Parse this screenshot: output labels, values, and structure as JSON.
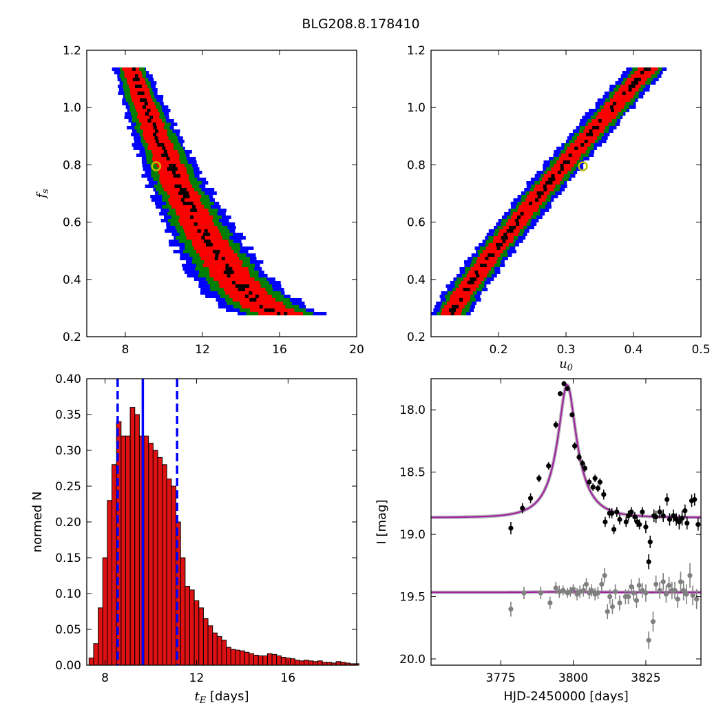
{
  "figure": {
    "title": "BLG208.8.178410"
  },
  "colors": {
    "sigma1": "#000000",
    "sigma2": "#ff0000",
    "sigma3": "#008000",
    "sigma4": "#0000ff",
    "best_fit_marker": "#bfbf00",
    "histogram_bar": "#dd1111",
    "best_line": "#0000ff",
    "model_curve": "#a020a0",
    "data_main": "#000000",
    "data_sub": "#808080"
  },
  "chart_data": [
    {
      "id": "fs-vs-tE",
      "type": "heatmap",
      "title": "",
      "xlabel": "",
      "ylabel": "f_s",
      "xlim": [
        6,
        20
      ],
      "ylim": [
        0.2,
        1.2
      ],
      "xticks": [
        8,
        12,
        16,
        20
      ],
      "xtick_labels": [
        "8",
        "12",
        "16",
        "20"
      ],
      "yticks": [
        0.2,
        0.4,
        0.6,
        0.8,
        1.0,
        1.2
      ],
      "ytick_labels": [
        "0.2",
        "0.4",
        "0.6",
        "0.8",
        "1.0",
        "1.2"
      ],
      "best_fit": {
        "x": 9.6,
        "y": 0.795
      },
      "ridge": {
        "f_min": 0.28,
        "f_max": 1.14,
        "x_at_fmax": 8.3,
        "x_at_fmin": 16.5,
        "curvature": 1.8
      },
      "band_widths": [
        0.2,
        0.8,
        1.2,
        1.6
      ],
      "grid": false
    },
    {
      "id": "fs-vs-u0",
      "type": "heatmap",
      "title": "",
      "xlabel": "u_0",
      "ylabel": "",
      "xlim": [
        0.1,
        0.5
      ],
      "ylim": [
        0.2,
        1.2
      ],
      "xticks": [
        0.2,
        0.3,
        0.4,
        0.5
      ],
      "xtick_labels": [
        "0.2",
        "0.3",
        "0.4",
        "0.5"
      ],
      "yticks": [
        0.2,
        0.4,
        0.6,
        0.8,
        1.0,
        1.2
      ],
      "ytick_labels": [
        "0.2",
        "0.4",
        "0.6",
        "0.8",
        "1.0",
        "1.2"
      ],
      "best_fit": {
        "x": 0.325,
        "y": 0.795
      },
      "ridge": {
        "f_min": 0.28,
        "f_max": 1.14,
        "x_at_fmin": 0.128,
        "x_at_fmax": 0.42,
        "curvature": 0.9
      },
      "band_widths": [
        0.005,
        0.015,
        0.022,
        0.03
      ],
      "grid": false
    },
    {
      "id": "tE-histogram",
      "type": "bar",
      "title": "",
      "xlabel": "t_E  [days]",
      "ylabel": "normed N",
      "xlim": [
        7.2,
        19.0
      ],
      "ylim": [
        0.0,
        0.4
      ],
      "xticks": [
        8,
        12,
        16
      ],
      "xtick_labels": [
        "8",
        "12",
        "16"
      ],
      "yticks": [
        0.0,
        0.05,
        0.1,
        0.15,
        0.2,
        0.25,
        0.3,
        0.35,
        0.4
      ],
      "ytick_labels": [
        "0.00",
        "0.05",
        "0.10",
        "0.15",
        "0.20",
        "0.25",
        "0.30",
        "0.35",
        "0.40"
      ],
      "bin_start": 7.3,
      "bin_width": 0.2,
      "values": [
        0.01,
        0.03,
        0.08,
        0.15,
        0.23,
        0.28,
        0.34,
        0.32,
        0.32,
        0.36,
        0.35,
        0.32,
        0.32,
        0.31,
        0.3,
        0.29,
        0.28,
        0.26,
        0.25,
        0.2,
        0.15,
        0.11,
        0.105,
        0.09,
        0.08,
        0.065,
        0.055,
        0.045,
        0.04,
        0.035,
        0.025,
        0.022,
        0.021,
        0.02,
        0.018,
        0.016,
        0.014,
        0.013,
        0.013,
        0.016,
        0.015,
        0.013,
        0.011,
        0.01,
        0.009,
        0.007,
        0.006,
        0.007,
        0.006,
        0.005,
        0.006,
        0.004,
        0.004,
        0.003,
        0.005,
        0.004,
        0.003,
        0.002,
        0.002
      ],
      "best": 9.65,
      "lower": 8.55,
      "upper": 11.15,
      "grid": false
    },
    {
      "id": "light-curve",
      "type": "scatter",
      "title": "",
      "xlabel": "HJD-2450000 [days]",
      "ylabel": "I [mag]",
      "xlim": [
        3751,
        3844
      ],
      "ylim": [
        20.05,
        17.75
      ],
      "xticks": [
        3775,
        3800,
        3825
      ],
      "xtick_labels": [
        "3775",
        "3800",
        "3825"
      ],
      "yticks": [
        18.0,
        18.5,
        19.0,
        19.5,
        20.0
      ],
      "ytick_labels": [
        "18.0",
        "18.5",
        "19.0",
        "19.5",
        "20.0"
      ],
      "model_main": {
        "baseline": 18.865,
        "peak": 17.8,
        "t0": 3797.9,
        "tE": 9.6,
        "u0": 0.33
      },
      "model_sub": {
        "baseline": 19.465
      },
      "series": [
        {
          "name": "",
          "x": [
            3778.5,
            3782.5,
            3785.3,
            3788.2,
            3791.5,
            3794.0,
            3795.5,
            3796.8,
            3798.0,
            3799.6,
            3800.5,
            3802.0,
            3803.2,
            3804.0,
            3805.5,
            3806.8,
            3807.5,
            3808.5,
            3809.2,
            3810.5,
            3811.0,
            3812.5,
            3813.3,
            3814.0,
            3815.0,
            3816.0,
            3818.2,
            3819.0,
            3820.0,
            3821.2,
            3822.0,
            3822.8,
            3823.8,
            3825.0,
            3826.0,
            3826.5,
            3827.8,
            3828.5,
            3829.8,
            3831.0,
            3832.3,
            3833.2,
            3834.5,
            3835.5,
            3836.5,
            3837.5,
            3838.5,
            3839.2,
            3840.8,
            3841.8,
            3843.0
          ],
          "y": [
            18.95,
            18.79,
            18.71,
            18.55,
            18.45,
            18.12,
            17.87,
            17.79,
            17.83,
            18.04,
            18.29,
            18.38,
            18.43,
            18.47,
            18.58,
            18.62,
            18.55,
            18.63,
            18.58,
            18.68,
            18.9,
            18.83,
            18.83,
            18.96,
            18.82,
            18.88,
            18.9,
            18.85,
            18.82,
            18.86,
            18.9,
            18.92,
            18.82,
            18.94,
            19.22,
            19.06,
            18.85,
            18.86,
            18.82,
            18.85,
            18.72,
            18.88,
            18.85,
            18.88,
            18.9,
            18.87,
            18.81,
            18.91,
            18.73,
            18.72,
            18.92
          ],
          "err": [
            0.05,
            0.04,
            0.04,
            0.03,
            0.03,
            0.03,
            0.02,
            0.02,
            0.02,
            0.02,
            0.03,
            0.03,
            0.03,
            0.03,
            0.03,
            0.03,
            0.03,
            0.03,
            0.03,
            0.04,
            0.04,
            0.04,
            0.04,
            0.04,
            0.04,
            0.04,
            0.04,
            0.04,
            0.04,
            0.04,
            0.04,
            0.04,
            0.04,
            0.05,
            0.06,
            0.05,
            0.05,
            0.05,
            0.05,
            0.05,
            0.05,
            0.05,
            0.05,
            0.05,
            0.06,
            0.06,
            0.05,
            0.05,
            0.05,
            0.05,
            0.05
          ]
        },
        {
          "name": "",
          "x": [
            3778.5,
            3783.0,
            3788.8,
            3792.0,
            3794.0,
            3795.2,
            3796.5,
            3798.0,
            3799.0,
            3800.0,
            3801.3,
            3802.3,
            3803.5,
            3804.5,
            3805.5,
            3806.3,
            3807.5,
            3808.5,
            3809.8,
            3810.8,
            3811.8,
            3812.6,
            3813.5,
            3814.5,
            3816.0,
            3818.0,
            3819.0,
            3820.0,
            3820.8,
            3821.8,
            3822.7,
            3823.8,
            3825.0,
            3826.0,
            3827.5,
            3828.5,
            3829.8,
            3831.0,
            3832.0,
            3833.0,
            3834.0,
            3835.0,
            3836.0,
            3837.0,
            3838.0,
            3839.0,
            3840.2,
            3841.2,
            3842.5
          ],
          "y": [
            19.6,
            19.47,
            19.47,
            19.55,
            19.43,
            19.46,
            19.45,
            19.47,
            19.46,
            19.44,
            19.48,
            19.46,
            19.45,
            19.4,
            19.47,
            19.45,
            19.48,
            19.47,
            19.4,
            19.33,
            19.62,
            19.5,
            19.58,
            19.46,
            19.55,
            19.5,
            19.5,
            19.42,
            19.47,
            19.53,
            19.41,
            19.45,
            19.47,
            19.85,
            19.7,
            19.4,
            19.45,
            19.38,
            19.48,
            19.41,
            19.45,
            19.45,
            19.52,
            19.38,
            19.45,
            19.48,
            19.33,
            19.49,
            19.52
          ],
          "err": [
            0.06,
            0.05,
            0.05,
            0.05,
            0.05,
            0.05,
            0.04,
            0.04,
            0.04,
            0.04,
            0.05,
            0.05,
            0.05,
            0.05,
            0.05,
            0.05,
            0.05,
            0.05,
            0.05,
            0.06,
            0.06,
            0.06,
            0.06,
            0.06,
            0.06,
            0.06,
            0.06,
            0.06,
            0.06,
            0.06,
            0.06,
            0.06,
            0.07,
            0.07,
            0.08,
            0.07,
            0.07,
            0.07,
            0.07,
            0.07,
            0.07,
            0.07,
            0.07,
            0.08,
            0.08,
            0.08,
            0.1,
            0.08,
            0.08
          ]
        }
      ],
      "grid": false
    }
  ]
}
